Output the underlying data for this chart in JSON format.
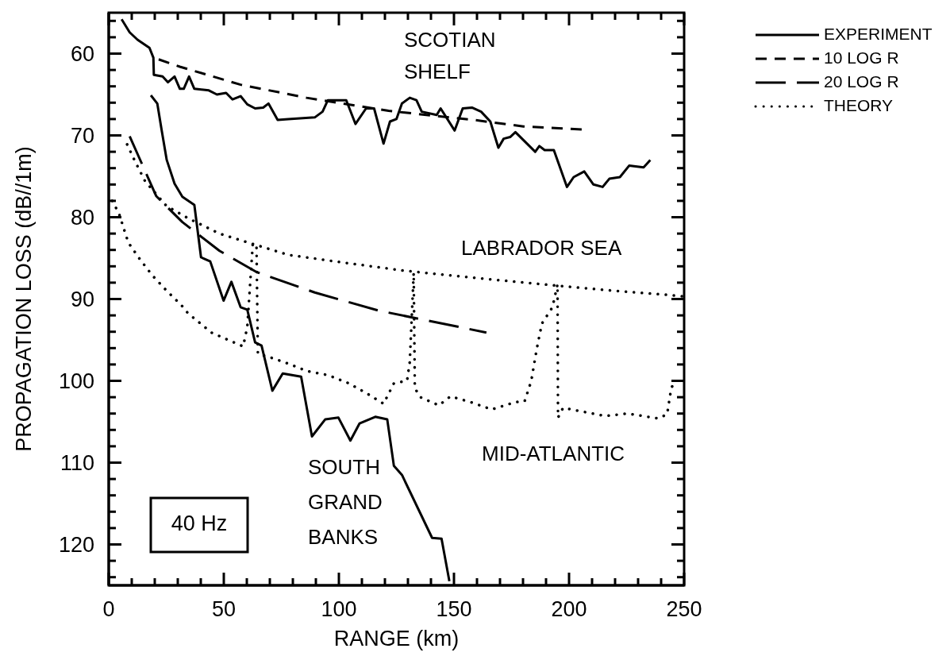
{
  "chart_data": {
    "type": "line",
    "xlabel": "RANGE (km)",
    "ylabel": "PROPAGATION LOSS (dB//1m)",
    "xlim": [
      0,
      250
    ],
    "ylim": [
      125,
      55
    ],
    "xticks": [
      0,
      {
        "value": 10,
        "label": null
      },
      {
        "value": 20,
        "label": null
      },
      {
        "value": 30,
        "label": null
      },
      {
        "value": 40,
        "label": null
      },
      50,
      {
        "value": 60,
        "label": null
      },
      {
        "value": 70,
        "label": null
      },
      {
        "value": 80,
        "label": null
      },
      {
        "value": 90,
        "label": null
      },
      100,
      {
        "value": 110,
        "label": null
      },
      {
        "value": 120,
        "label": null
      },
      {
        "value": 130,
        "label": null
      },
      {
        "value": 140,
        "label": null
      },
      150,
      {
        "value": 160,
        "label": null
      },
      {
        "value": 170,
        "label": null
      },
      {
        "value": 180,
        "label": null
      },
      {
        "value": 190,
        "label": null
      },
      200,
      {
        "value": 210,
        "label": null
      },
      {
        "value": 220,
        "label": null
      },
      {
        "value": 230,
        "label": null
      },
      {
        "value": 240,
        "label": null
      },
      250
    ],
    "yticks": [
      {
        "value": 56,
        "label": null
      },
      {
        "value": 58,
        "label": null
      },
      60,
      {
        "value": 62,
        "label": null
      },
      {
        "value": 64,
        "label": null
      },
      {
        "value": 66,
        "label": null
      },
      {
        "value": 68,
        "label": null
      },
      70,
      {
        "value": 72,
        "label": null
      },
      {
        "value": 74,
        "label": null
      },
      {
        "value": 76,
        "label": null
      },
      {
        "value": 78,
        "label": null
      },
      80,
      {
        "value": 82,
        "label": null
      },
      {
        "value": 84,
        "label": null
      },
      {
        "value": 86,
        "label": null
      },
      {
        "value": 88,
        "label": null
      },
      90,
      {
        "value": 92,
        "label": null
      },
      {
        "value": 94,
        "label": null
      },
      {
        "value": 96,
        "label": null
      },
      {
        "value": 98,
        "label": null
      },
      100,
      {
        "value": 102,
        "label": null
      },
      {
        "value": 104,
        "label": null
      },
      {
        "value": 106,
        "label": null
      },
      {
        "value": 108,
        "label": null
      },
      110,
      {
        "value": 112,
        "label": null
      },
      {
        "value": 114,
        "label": null
      },
      {
        "value": 116,
        "label": null
      },
      {
        "value": 118,
        "label": null
      },
      120,
      {
        "value": 122,
        "label": null
      },
      {
        "value": 124,
        "label": null
      }
    ],
    "legend": "top right",
    "series": [
      {
        "name": "EXPERIMENT",
        "color": "#000000",
        "line_style": "solid",
        "x": [
          5.6,
          9.1,
          12.5,
          17.7,
          19.4,
          19.6,
          23.4,
          25.7,
          28.6,
          30.9,
          32.6,
          34.9,
          37.2,
          43.5,
          47,
          51,
          53.8,
          57.3,
          60.2,
          63.6,
          67.1,
          69.4,
          73.4,
          78,
          89.5,
          92.9,
          95.2,
          103.2,
          107.2,
          111.8,
          115.3,
          119.4,
          122.2,
          125,
          127.4,
          130.8,
          133.7,
          136,
          142.5,
          144.2,
          150.3,
          153.8,
          157.8,
          161.8,
          165.8,
          169.3,
          171.6,
          174.4,
          176.7,
          185.3,
          187.1,
          189.4,
          193.4,
          199.1,
          202,
          206.6,
          210.6,
          214.6,
          217.5,
          222.1,
          226.1,
          232.4,
          235.3
        ],
        "values": [
          55.8,
          57.4,
          58.3,
          59.3,
          60.5,
          62.6,
          62.8,
          63.5,
          62.8,
          64.3,
          64.3,
          62.8,
          64.3,
          64.5,
          65,
          64.8,
          65.6,
          65.2,
          66.2,
          66.7,
          66.6,
          66.1,
          68.1,
          68,
          67.8,
          67.1,
          65.7,
          65.7,
          68.6,
          66.7,
          66.7,
          71,
          68.3,
          68,
          66.1,
          65.4,
          65.7,
          67.1,
          67.5,
          66.7,
          69.4,
          66.7,
          66.6,
          67.1,
          68.3,
          71.5,
          70.4,
          70.2,
          69.6,
          72,
          71.3,
          71.8,
          71.8,
          76.3,
          75.1,
          74.4,
          76,
          76.3,
          75.3,
          75.1,
          73.7,
          73.9,
          73
        ]
      },
      {
        "name": "10 LOG R",
        "color": "#000000",
        "line_style": "dashed",
        "x": [
          21.7,
          30.9,
          57.3,
          86,
          121.6,
          158.4,
          180.2,
          206.6
        ],
        "values": [
          60.7,
          61.6,
          63.8,
          65.4,
          67,
          68.1,
          68.9,
          69.3
        ]
      },
      {
        "name": "20 LOG R",
        "color": "#000000",
        "line_style": "dashed",
        "x": [
          9.1,
          20.6,
          32,
          48.1,
          64.2,
          89.5,
          117,
          164.1
        ],
        "values": [
          70.1,
          77.4,
          80.6,
          84.1,
          86.7,
          89.2,
          91.4,
          94.1
        ]
      },
      {
        "name": "THEORY",
        "color": "#000000",
        "line_style": "dotted",
        "x": [
          8,
          11.3,
          15.8,
          25,
          34.3,
          48.1,
          61.8,
          78,
          100.9,
          127.4,
          137.6,
          169.8,
          196.2,
          220,
          243.3,
          250
        ],
        "values": [
          71.1,
          73.1,
          75.6,
          78.6,
          80.1,
          82,
          83.2,
          84.6,
          85.5,
          86.5,
          86.8,
          87.7,
          88.4,
          89,
          89.5,
          89.7
        ]
      },
      {
        "color": "#000000",
        "line_style": "solid",
        "x": [
          18.3,
          21.1,
          22.9,
          25.2,
          28.6,
          32,
          37.2,
          40.1,
          44.1,
          49.9,
          53.3,
          57.3,
          60.2,
          63.6,
          66.4,
          71.1,
          75.6,
          83.6,
          88.3,
          94.1,
          99.8,
          105,
          109,
          115.8,
          121,
          123.9,
          127.4,
          140.5,
          144.6,
          148
        ],
        "values": [
          65.1,
          66.1,
          69.2,
          73,
          75.9,
          77.5,
          78.5,
          84.9,
          85.4,
          90.2,
          87.9,
          91,
          91.3,
          95.3,
          95.7,
          101.2,
          99.1,
          99.5,
          106.8,
          104.7,
          104.5,
          107.3,
          105.2,
          104.4,
          104.7,
          110.4,
          111.5,
          119.2,
          119.3,
          124.5
        ]
      },
      {
        "color": "#000000",
        "line_style": "dotted",
        "x": [
          1.5,
          4.4,
          8.5,
          13.7,
          18.9,
          25.2,
          31.4,
          34.3,
          44.6,
          52.7,
          58.4,
          60.2,
          62.6,
          64.2,
          64.8,
          69.8,
          78,
          86,
          95.2,
          104.3,
          112.5,
          119.4,
          123.9,
          129.6,
          130.8,
          132.5,
          133,
          135.4,
          143.4,
          148.5,
          157.2,
          166.4,
          176.7,
          180.7,
          183.6,
          185.9,
          188.2,
          192.8,
          195,
          195.2,
          197.4,
          206.5,
          215.7,
          225.4,
          238.7,
          242.6,
          244.4,
          246.1
        ],
        "values": [
          78,
          79.5,
          83.1,
          85.2,
          87.1,
          89,
          90.7,
          91.7,
          94.1,
          95.1,
          95.8,
          93.4,
          83.2,
          83.5,
          96.7,
          97.1,
          97.9,
          98.8,
          99.3,
          100.3,
          101.6,
          102.8,
          100.3,
          100,
          97.7,
          86.8,
          100.9,
          102,
          103,
          101.9,
          102.6,
          103.5,
          102.6,
          102.5,
          100,
          96.2,
          93,
          91,
          88.2,
          104.5,
          103.3,
          103.8,
          104.3,
          104,
          104.6,
          104.1,
          100.9,
          100
        ]
      }
    ],
    "annotations": [
      "SCOTIAN\nSHELF",
      "LABRADOR SEA",
      "MID-ATLANTIC",
      "SOUTH\nGRAND\nBANKS",
      "40 Hz"
    ]
  }
}
